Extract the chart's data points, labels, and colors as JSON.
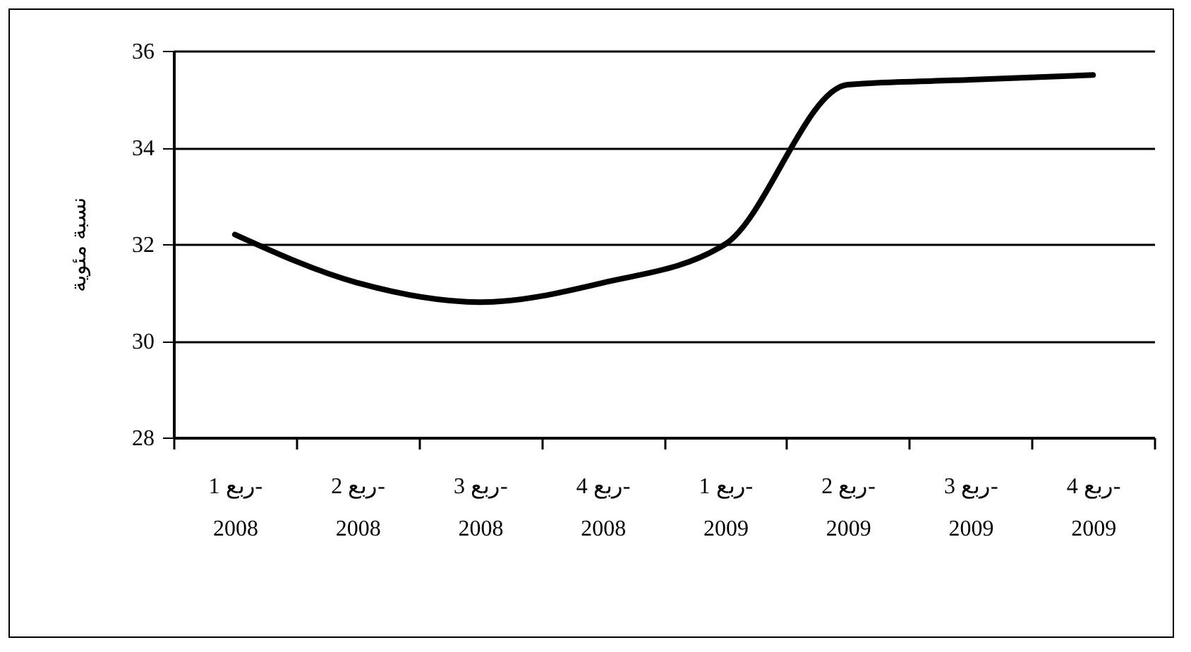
{
  "chart_data": {
    "type": "line",
    "ylabel": "نسبة مئوية",
    "categories": [
      "ربع 1-\n2008",
      "ربع 2-\n2008",
      "ربع 3-\n2008",
      "ربع 4-\n2008",
      "ربع 1-\n2009",
      "ربع 2-\n2009",
      "ربع 3-\n2009",
      "ربع 4-\n2009"
    ],
    "series": [
      {
        "color": "#000000",
        "values": [
          32.2,
          31.2,
          30.8,
          31.2,
          32.0,
          35.3,
          35.4,
          35.5
        ]
      }
    ],
    "ylim": [
      28,
      36
    ],
    "yticks": [
      28,
      30,
      32,
      34,
      36
    ],
    "grid": "y",
    "legend": false,
    "marker": "none",
    "line_style": "solid"
  }
}
